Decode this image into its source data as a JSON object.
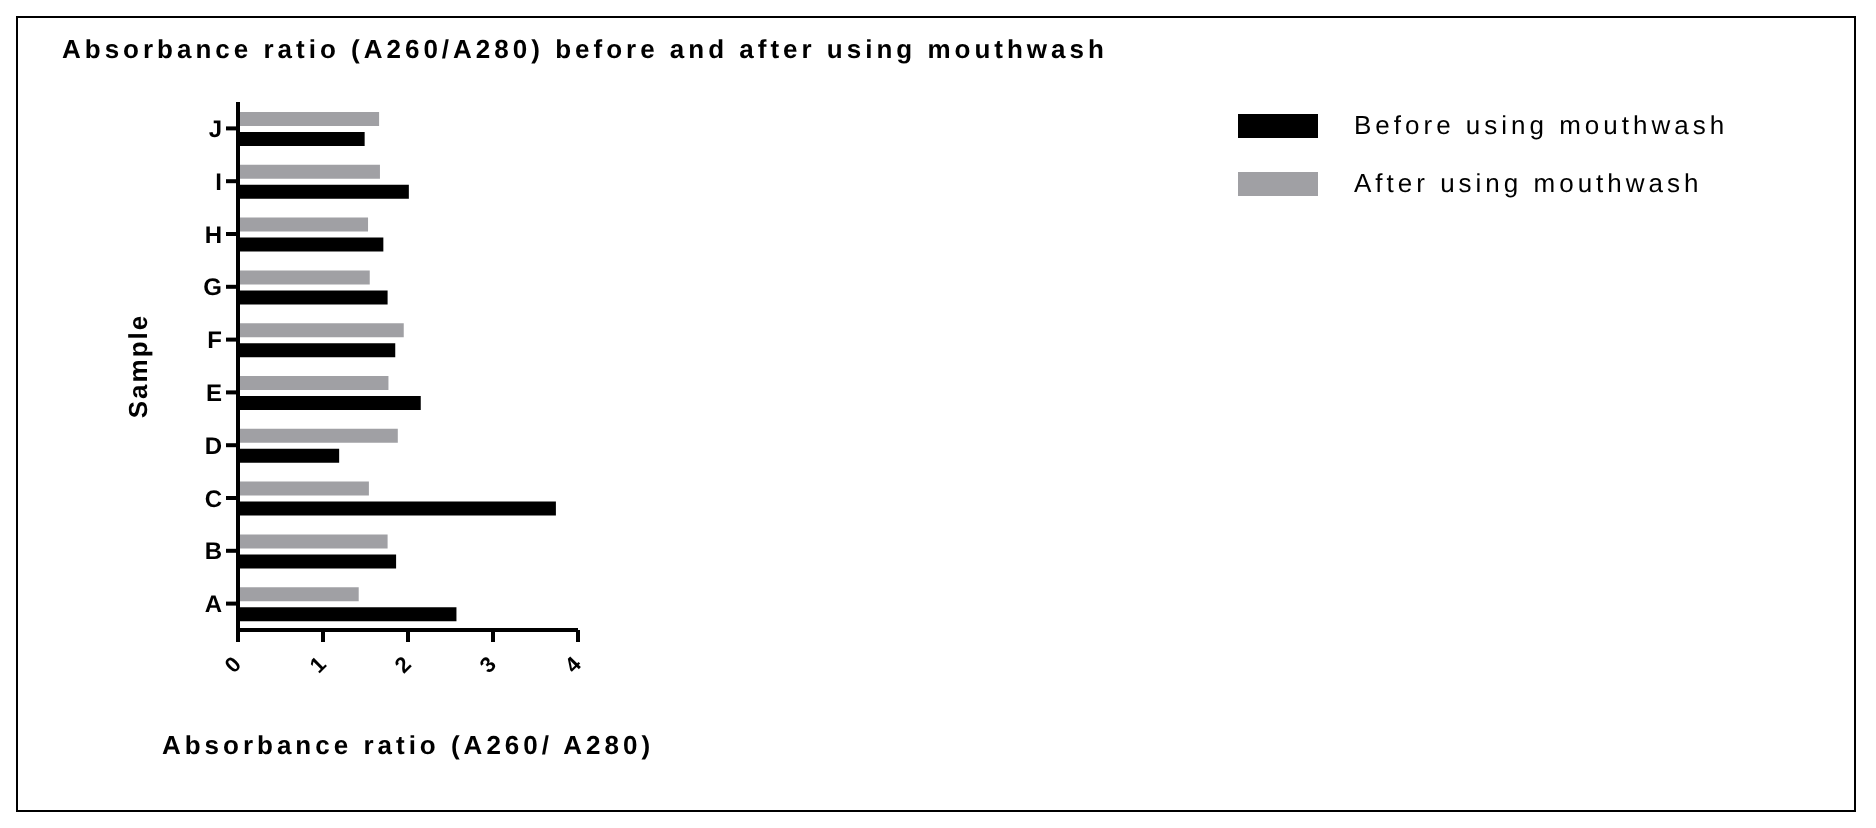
{
  "chart_data": {
    "type": "bar",
    "orientation": "horizontal",
    "title": "Absorbance ratio (A260/A280) before and after using mouthwash",
    "xlabel": "Absorbance ratio (A260/ A280)",
    "ylabel": "Sample",
    "categories": [
      "J",
      "I",
      "H",
      "G",
      "F",
      "E",
      "D",
      "C",
      "B",
      "A"
    ],
    "series": [
      {
        "name": "Before using mouthwash",
        "color": "#000000",
        "values": [
          1.49,
          2.01,
          1.71,
          1.76,
          1.85,
          2.15,
          1.19,
          3.74,
          1.86,
          2.57
        ]
      },
      {
        "name": "After using mouthwash",
        "color": "#a0a0a4",
        "values": [
          1.66,
          1.67,
          1.53,
          1.55,
          1.95,
          1.77,
          1.88,
          1.54,
          1.76,
          1.42
        ]
      }
    ],
    "xlim": [
      0,
      4
    ],
    "xticks": [
      0,
      1,
      2,
      3,
      4
    ],
    "grid": false,
    "legend": "top right"
  }
}
